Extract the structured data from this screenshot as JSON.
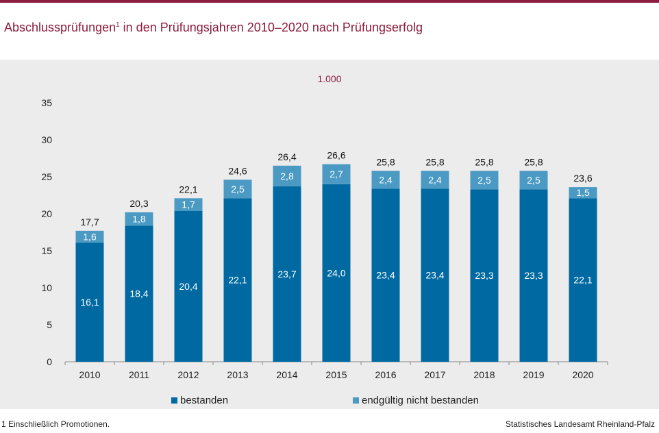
{
  "header": {
    "title": "Abschlussprüfungen",
    "title_sup": "1",
    "title_rest": " in den Prüfungsjahren 2010–2020 nach Prüfungserfolg"
  },
  "colors": {
    "brand": "#8c1d3f",
    "bestanden": "#0069a1",
    "nicht_bestanden": "#4b9ac3",
    "panel": "#ececec"
  },
  "chart_data": {
    "type": "bar",
    "stacked": true,
    "scale_note": "1.000",
    "categories": [
      "2010",
      "2011",
      "2012",
      "2013",
      "2014",
      "2015",
      "2016",
      "2017",
      "2018",
      "2019",
      "2020"
    ],
    "series": [
      {
        "name": "bestanden",
        "values": [
          16.1,
          18.4,
          20.4,
          22.1,
          23.7,
          24.0,
          23.4,
          23.4,
          23.3,
          23.3,
          22.1
        ],
        "labels": [
          "16,1",
          "18,4",
          "20,4",
          "22,1",
          "23,7",
          "24,0",
          "23,4",
          "23,4",
          "23,3",
          "23,3",
          "22,1"
        ]
      },
      {
        "name": "endgültig nicht bestanden",
        "values": [
          1.6,
          1.8,
          1.7,
          2.5,
          2.8,
          2.7,
          2.4,
          2.4,
          2.5,
          2.5,
          1.5
        ],
        "labels": [
          "1,6",
          "1,8",
          "1,7",
          "2,5",
          "2,8",
          "2,7",
          "2,4",
          "2,4",
          "2,5",
          "2,5",
          "1,5"
        ]
      }
    ],
    "totals": [
      17.7,
      20.3,
      22.1,
      24.6,
      26.4,
      26.6,
      25.8,
      25.8,
      25.8,
      25.8,
      23.6
    ],
    "total_labels": [
      "17,7",
      "20,3",
      "22,1",
      "24,6",
      "26,4",
      "26,6",
      "25,8",
      "25,8",
      "25,8",
      "25,8",
      "23,6"
    ],
    "yticks": [
      "0",
      "5",
      "10",
      "15",
      "20",
      "25",
      "30",
      "35"
    ],
    "ylim": [
      0,
      35
    ],
    "legend_position": "bottom"
  },
  "footer": {
    "footnote": "1 Einschließlich Promotionen.",
    "source": "Statistisches Landesamt Rheinland-Pfalz"
  }
}
